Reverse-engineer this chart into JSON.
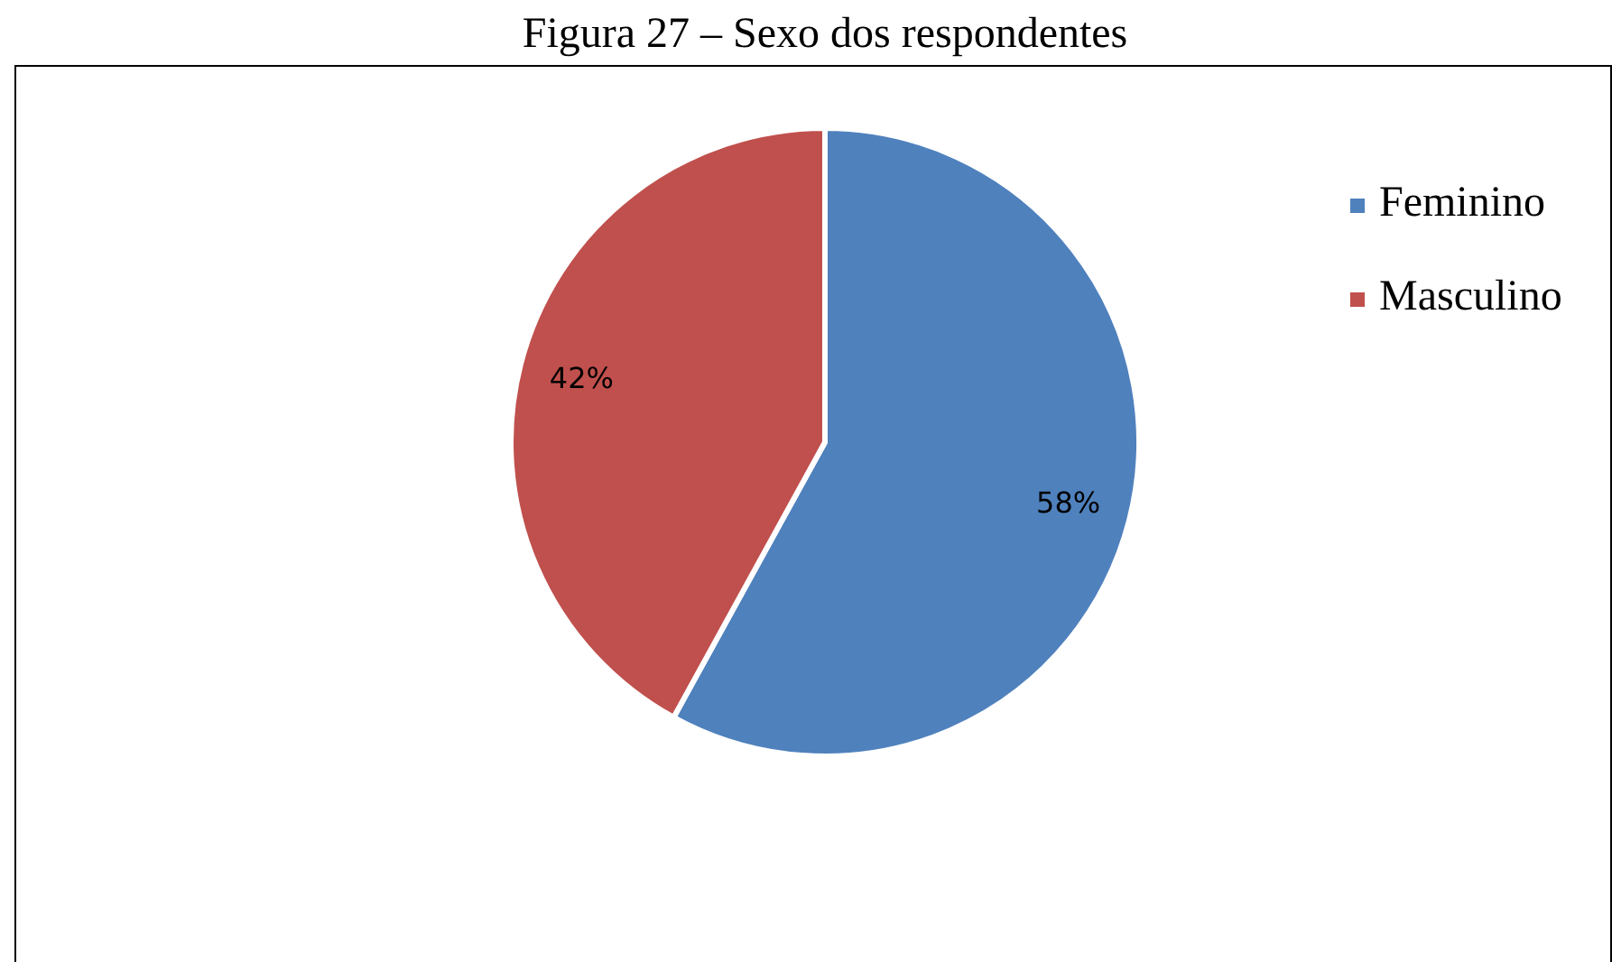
{
  "chart_data": {
    "type": "pie",
    "title": "Figura 27 – Sexo dos respondentes",
    "categories": [
      "Feminino",
      "Masculino"
    ],
    "values": [
      58,
      42
    ],
    "colors": [
      "#4f81bd",
      "#c0504d"
    ],
    "value_labels": [
      "58%",
      "42%"
    ],
    "legend": "right"
  }
}
